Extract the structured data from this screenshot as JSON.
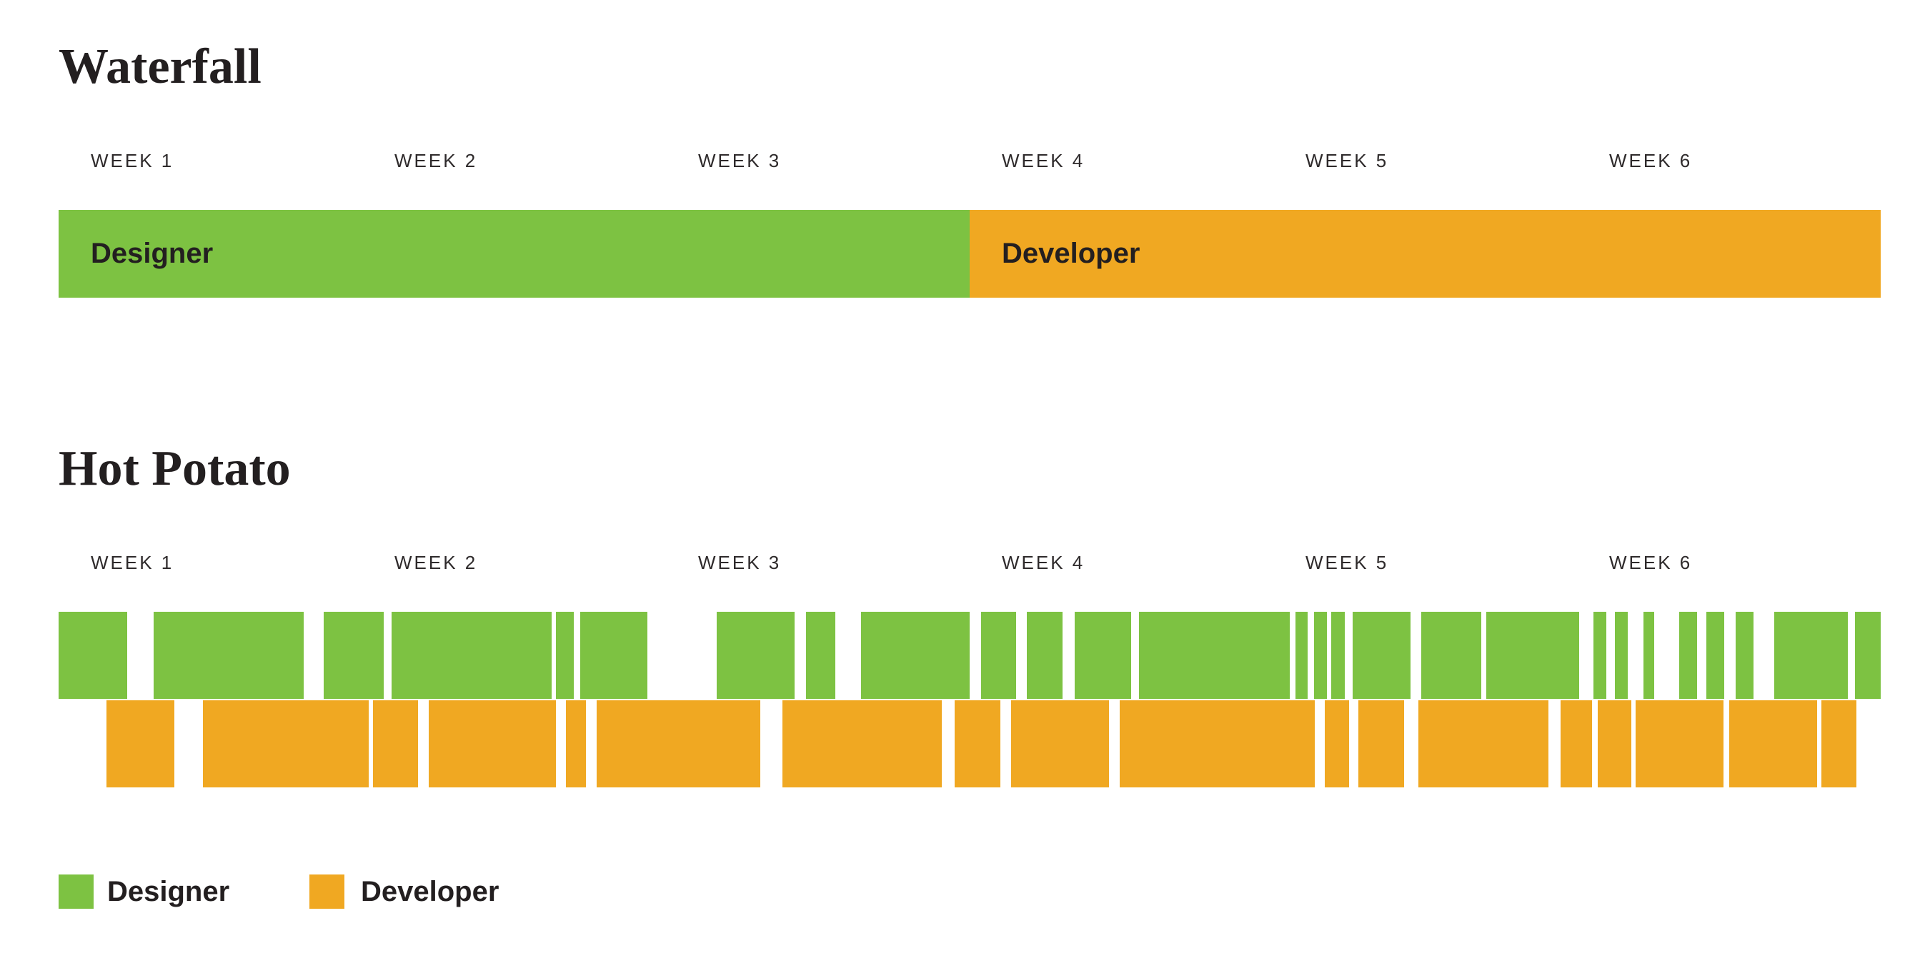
{
  "colors": {
    "designer": "#7dc242",
    "developer": "#f0a822",
    "text": "#231f20",
    "week_label": "#2e2a2b",
    "background": "#ffffff"
  },
  "legend": {
    "items": [
      {
        "label": "Designer",
        "role": "designer"
      },
      {
        "label": "Developer",
        "role": "developer"
      }
    ]
  },
  "chart_data": [
    {
      "type": "gantt",
      "title": "Waterfall",
      "x_unit": "weeks",
      "xlim": [
        0,
        6
      ],
      "x_ticks": [
        "WEEK 1",
        "WEEK 2",
        "WEEK 3",
        "WEEK 4",
        "WEEK 5",
        "WEEK 6"
      ],
      "layout": "single-row",
      "series": [
        {
          "name": "Designer",
          "color": "#7dc242",
          "bar_label": "Designer",
          "segments": [
            [
              0,
              3
            ]
          ]
        },
        {
          "name": "Developer",
          "color": "#f0a822",
          "bar_label": "Developer",
          "segments": [
            [
              3,
              6
            ]
          ]
        }
      ]
    },
    {
      "type": "gantt",
      "title": "Hot Potato",
      "x_unit": "weeks",
      "xlim": [
        0,
        6
      ],
      "x_ticks": [
        "WEEK 1",
        "WEEK 2",
        "WEEK 3",
        "WEEK 4",
        "WEEK 5",
        "WEEK 6"
      ],
      "layout": "two-row",
      "series": [
        {
          "name": "Designer",
          "color": "#7dc242",
          "row": 0,
          "segments": [
            [
              0,
              0.226
            ],
            [
              0.313,
              0.807
            ],
            [
              0.873,
              1.071
            ],
            [
              1.096,
              1.624
            ],
            [
              1.638,
              1.696
            ],
            [
              1.718,
              1.939
            ],
            [
              2.167,
              2.424
            ],
            [
              2.461,
              2.558
            ],
            [
              2.642,
              3.0
            ],
            [
              3.038,
              3.153
            ],
            [
              3.188,
              3.306
            ],
            [
              3.346,
              3.532
            ],
            [
              3.558,
              4.054
            ],
            [
              4.073,
              4.113
            ],
            [
              4.134,
              4.176
            ],
            [
              4.191,
              4.235
            ],
            [
              4.261,
              4.452
            ],
            [
              4.487,
              4.685
            ],
            [
              4.701,
              5.007
            ],
            [
              5.054,
              5.096
            ],
            [
              5.125,
              5.167
            ],
            [
              5.219,
              5.254
            ],
            [
              5.336,
              5.395
            ],
            [
              5.426,
              5.485
            ],
            [
              5.522,
              5.581
            ],
            [
              5.649,
              5.892
            ],
            [
              5.915,
              6.0
            ]
          ]
        },
        {
          "name": "Developer",
          "color": "#f0a822",
          "row": 1,
          "segments": [
            [
              0.158,
              0.381
            ],
            [
              0.475,
              1.021
            ],
            [
              1.035,
              1.183
            ],
            [
              1.219,
              1.638
            ],
            [
              1.671,
              1.736
            ],
            [
              1.772,
              2.311
            ],
            [
              2.384,
              2.908
            ],
            [
              2.951,
              3.101
            ],
            [
              3.136,
              3.459
            ],
            [
              3.494,
              4.136
            ],
            [
              4.169,
              4.249
            ],
            [
              4.28,
              4.431
            ],
            [
              4.478,
              4.906
            ],
            [
              4.946,
              5.049
            ],
            [
              5.068,
              5.179
            ],
            [
              5.193,
              5.482
            ],
            [
              5.502,
              5.791
            ],
            [
              5.804,
              5.92
            ]
          ]
        }
      ]
    }
  ]
}
